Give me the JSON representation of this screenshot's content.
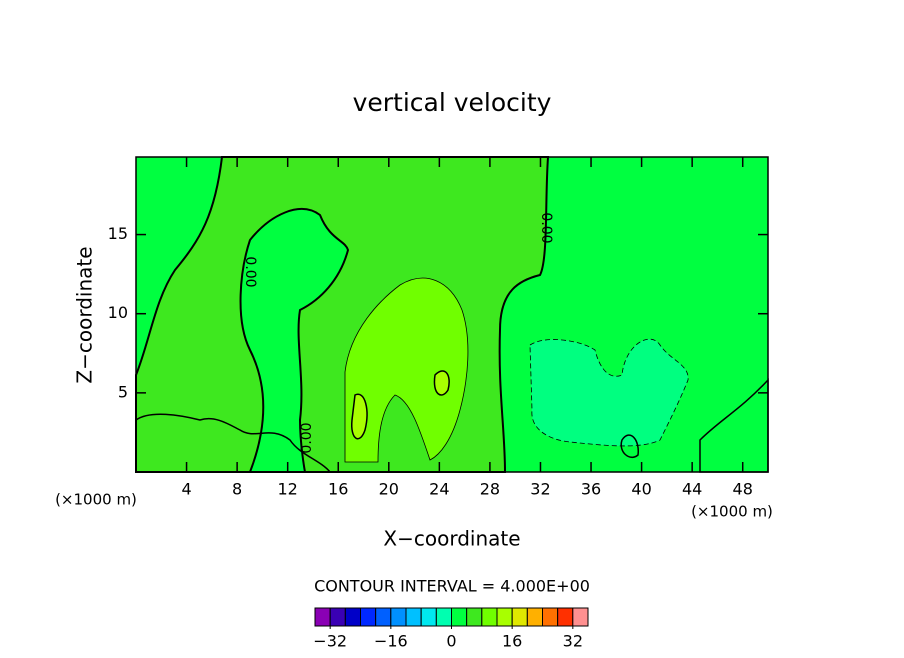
{
  "chart_data": {
    "type": "contour",
    "title": "vertical velocity",
    "x_label": "X−coordinate",
    "y_label": "Z−coordinate",
    "x_unit": "(×1000 m)",
    "y_unit": "(×1000 m)",
    "xlim": [
      0,
      50
    ],
    "xticks": [
      4,
      8,
      12,
      16,
      20,
      24,
      28,
      32,
      36,
      40,
      44,
      48
    ],
    "ylim": [
      0,
      19.9
    ],
    "yticks": [
      5,
      10,
      15
    ],
    "contour_labels": [
      "0.00",
      "0.00",
      "0.00"
    ],
    "contour_interval_label": "CONTOUR INTERVAL = 4.000E+00",
    "colorbar": {
      "clim": [
        -36,
        36
      ],
      "ticks": [
        -32,
        -16,
        0,
        16,
        32
      ],
      "colors": [
        "#8a00b4",
        "#3a00b4",
        "#0000c8",
        "#0028ff",
        "#0060ff",
        "#0090ff",
        "#00c0ff",
        "#00e8f0",
        "#00ffb0",
        "#00ff40",
        "#3ee81f",
        "#70ff00",
        "#a8ff00",
        "#e0e800",
        "#ffb000",
        "#ff7000",
        "#ff3000",
        "#ff9090"
      ]
    }
  }
}
